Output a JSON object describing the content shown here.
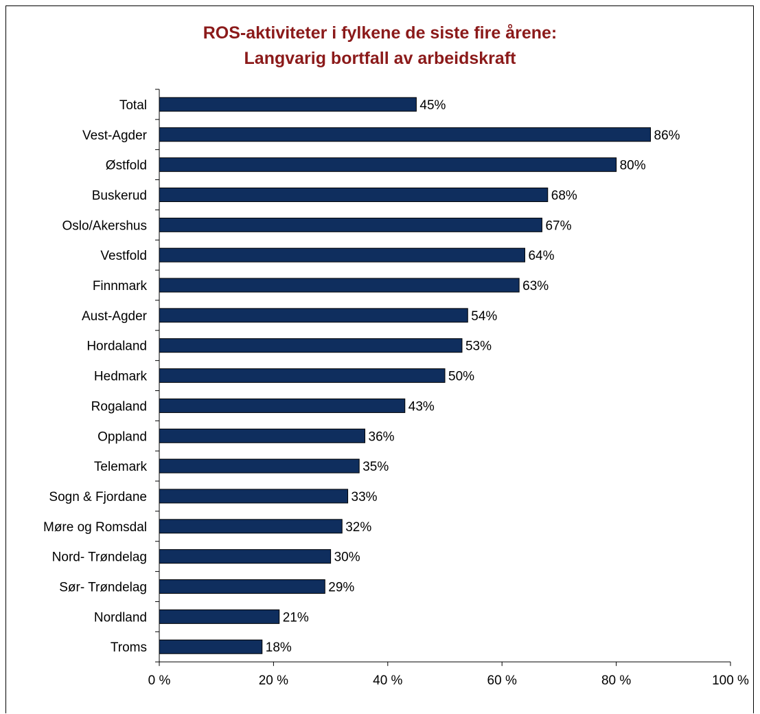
{
  "chart_data": {
    "type": "bar",
    "orientation": "horizontal",
    "title": "ROS-aktiviteter i fylkene de siste fire årene:",
    "subtitle": "Langvarig bortfall av arbeidskraft",
    "categories": [
      "Total",
      "Vest-Agder",
      "Østfold",
      "Buskerud",
      "Oslo/Akershus",
      "Vestfold",
      "Finnmark",
      "Aust-Agder",
      "Hordaland",
      "Hedmark",
      "Rogaland",
      "Oppland",
      "Telemark",
      "Sogn & Fjordane",
      "Møre og Romsdal",
      "Nord- Trøndelag",
      "Sør- Trøndelag",
      "Nordland",
      "Troms"
    ],
    "values": [
      45,
      86,
      80,
      68,
      67,
      64,
      63,
      54,
      53,
      50,
      43,
      36,
      35,
      33,
      32,
      30,
      29,
      21,
      18
    ],
    "data_labels": [
      "45%",
      "86%",
      "80%",
      "68%",
      "67%",
      "64%",
      "63%",
      "54%",
      "53%",
      "50%",
      "43%",
      "36%",
      "35%",
      "33%",
      "32%",
      "30%",
      "29%",
      "21%",
      "18%"
    ],
    "x_ticks": [
      "0 %",
      "20 %",
      "40 %",
      "60 %",
      "80 %",
      "100 %"
    ],
    "xlim": [
      0,
      100
    ],
    "grid": false,
    "legend": "none",
    "bar_color": "#0F2E5E",
    "title_color": "#8B1A1A"
  }
}
